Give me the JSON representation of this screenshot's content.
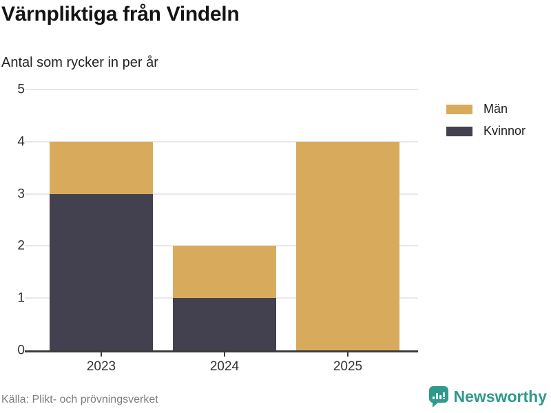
{
  "title": "Värnpliktiga från Vindeln",
  "subtitle": "Antal som rycker in per år",
  "footer": {
    "source": "Källa: Plikt- och prövningsverket",
    "brand": "Newsworthy"
  },
  "colors": {
    "men": "#d8ab5c",
    "women": "#434050",
    "grid": "#e8e8e8",
    "axis": "#3b3b3b",
    "brand_teal": "#2f9a8c",
    "tick_text": "#333333",
    "source_text": "#7d7d7d"
  },
  "legend": [
    {
      "label": "Män",
      "color": "#d8ab5c"
    },
    {
      "label": "Kvinnor",
      "color": "#434050"
    }
  ],
  "chart_data": {
    "type": "bar",
    "stacked": true,
    "categories": [
      "2023",
      "2024",
      "2025"
    ],
    "series": [
      {
        "name": "Kvinnor",
        "color": "#434050",
        "values": [
          3,
          1,
          0
        ]
      },
      {
        "name": "Män",
        "color": "#d8ab5c",
        "values": [
          1,
          1,
          4
        ]
      }
    ],
    "title": "Värnpliktiga från Vindeln",
    "subtitle": "Antal som rycker in per år",
    "xlabel": "",
    "ylabel": "",
    "ylim": [
      0,
      5
    ],
    "yticks": [
      0,
      1,
      2,
      3,
      4,
      5
    ],
    "grid": true,
    "legend_position": "right"
  }
}
